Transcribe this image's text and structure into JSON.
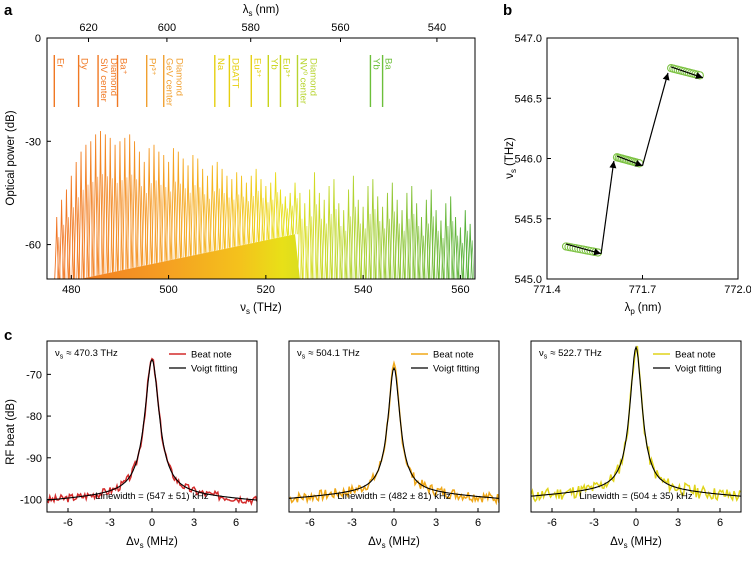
{
  "panel_labels": {
    "a": "a",
    "b": "b",
    "c": "c"
  },
  "chart_data": [
    {
      "id": "a",
      "type": "line",
      "xlabel": "ν",
      "xlabel_sub": "s",
      "xlabel_unit": "(THz)",
      "top_xlabel": "λ",
      "top_xlabel_sub": "s",
      "top_xlabel_unit": "(nm)",
      "ylabel": "Optical power (dB)",
      "xlim": [
        475,
        563
      ],
      "ylim": [
        -70,
        0
      ],
      "x_ticks": [
        480,
        500,
        520,
        540,
        560
      ],
      "y_ticks": [
        0,
        -30,
        -60
      ],
      "y_tick_labels": [
        "0",
        "-30",
        "-60"
      ],
      "top_ticks_nm": [
        620,
        600,
        580,
        560,
        540
      ],
      "comb_peaks_dB": [
        [
          477,
          -52
        ],
        [
          478,
          -47
        ],
        [
          479,
          -44
        ],
        [
          480,
          -40
        ],
        [
          481,
          -36
        ],
        [
          482,
          -33
        ],
        [
          483,
          -31
        ],
        [
          484,
          -30
        ],
        [
          485,
          -28
        ],
        [
          486,
          -27
        ],
        [
          487,
          -28
        ],
        [
          488,
          -29
        ],
        [
          489,
          -31
        ],
        [
          490,
          -30
        ],
        [
          491,
          -29
        ],
        [
          492,
          -28
        ],
        [
          493,
          -30
        ],
        [
          494,
          -33
        ],
        [
          495,
          -36
        ],
        [
          496,
          -32
        ],
        [
          497,
          -31
        ],
        [
          498,
          -33
        ],
        [
          499,
          -34
        ],
        [
          500,
          -36
        ],
        [
          501,
          -32
        ],
        [
          502,
          -33
        ],
        [
          503,
          -35
        ],
        [
          504,
          -37
        ],
        [
          505,
          -34
        ],
        [
          506,
          -35
        ],
        [
          507,
          -38
        ],
        [
          508,
          -40
        ],
        [
          509,
          -37
        ],
        [
          510,
          -36
        ],
        [
          511,
          -38
        ],
        [
          512,
          -40
        ],
        [
          513,
          -41
        ],
        [
          514,
          -39
        ],
        [
          515,
          -40
        ],
        [
          516,
          -42
        ],
        [
          517,
          -40
        ],
        [
          518,
          -38
        ],
        [
          519,
          -41
        ],
        [
          520,
          -43
        ],
        [
          521,
          -42
        ],
        [
          522,
          -39
        ],
        [
          523,
          -44
        ],
        [
          524,
          -46
        ],
        [
          525,
          -45
        ],
        [
          526,
          -42
        ],
        [
          527,
          -45
        ],
        [
          528,
          -48
        ],
        [
          529,
          -44
        ],
        [
          530,
          -39
        ],
        [
          531,
          -45
        ],
        [
          532,
          -47
        ],
        [
          533,
          -43
        ],
        [
          534,
          -41
        ],
        [
          535,
          -48
        ],
        [
          536,
          -50
        ],
        [
          537,
          -44
        ],
        [
          538,
          -40
        ],
        [
          539,
          -47
        ],
        [
          540,
          -49
        ],
        [
          541,
          -43
        ],
        [
          542,
          -41
        ],
        [
          543,
          -46
        ],
        [
          544,
          -49
        ],
        [
          545,
          -45
        ],
        [
          546,
          -42
        ],
        [
          547,
          -47
        ],
        [
          548,
          -50
        ],
        [
          549,
          -45
        ],
        [
          550,
          -43
        ],
        [
          551,
          -48
        ],
        [
          552,
          -52
        ],
        [
          553,
          -47
        ],
        [
          554,
          -44
        ],
        [
          555,
          -50
        ],
        [
          556,
          -53
        ],
        [
          557,
          -48
        ],
        [
          558,
          -46
        ],
        [
          559,
          -52
        ],
        [
          560,
          -55
        ],
        [
          561,
          -50
        ],
        [
          562,
          -54
        ]
      ],
      "floor_dB": [
        [
          475,
          -72
        ],
        [
          526,
          -57
        ],
        [
          527,
          -70
        ],
        [
          563,
          -70
        ]
      ],
      "annotations": [
        {
          "x_thz": 476.5,
          "lines": [
            "Er"
          ],
          "color": "#f07823"
        },
        {
          "x_thz": 481.5,
          "lines": [
            "Dy"
          ],
          "color": "#f07823"
        },
        {
          "x_thz": 485.5,
          "lines": [
            "SiV center",
            "Diamond"
          ],
          "color": "#f07823"
        },
        {
          "x_thz": 489.5,
          "lines": [
            "Ba⁺"
          ],
          "color": "#f07823"
        },
        {
          "x_thz": 495.5,
          "lines": [
            "Pr³⁺"
          ],
          "color": "#f0a030"
        },
        {
          "x_thz": 499,
          "lines": [
            "GeV center",
            "Diamond"
          ],
          "color": "#f0a030"
        },
        {
          "x_thz": 509.5,
          "lines": [
            "Na"
          ],
          "color": "#e6cf10"
        },
        {
          "x_thz": 512.5,
          "lines": [
            "DBATT"
          ],
          "color": "#e6cf10"
        },
        {
          "x_thz": 517,
          "lines": [
            "Eu³⁺"
          ],
          "color": "#e6cf10"
        },
        {
          "x_thz": 520.5,
          "lines": [
            "Yb"
          ],
          "color": "#c8d41a"
        },
        {
          "x_thz": 523,
          "lines": [
            "Eu³⁺"
          ],
          "color": "#c8d41a"
        },
        {
          "x_thz": 526.5,
          "lines": [
            "NV⁰ center",
            "Diamond"
          ],
          "color": "#b8d430"
        },
        {
          "x_thz": 541.5,
          "lines": [
            "Yb"
          ],
          "color": "#6cbf3a"
        },
        {
          "x_thz": 544,
          "lines": [
            "Ba"
          ],
          "color": "#6cbf3a"
        }
      ]
    },
    {
      "id": "b",
      "type": "scatter",
      "xlabel": "λ",
      "xlabel_sub": "p",
      "xlabel_unit": "(nm)",
      "ylabel": "ν",
      "ylabel_sub": "s",
      "ylabel_unit": "(THz)",
      "xlim": [
        771.4,
        772.0
      ],
      "ylim": [
        545.0,
        547.0
      ],
      "x_ticks": [
        771.4,
        771.7,
        772.0
      ],
      "x_tick_labels": [
        "771.4",
        "771.7",
        "772.0"
      ],
      "y_ticks": [
        545.0,
        545.5,
        546.0,
        546.5,
        547.0
      ],
      "y_tick_labels": [
        "545.0",
        "545.5",
        "546.0",
        "546.5",
        "547.0"
      ],
      "clusters": [
        {
          "x_start": 771.46,
          "x_end": 771.56,
          "y_start": 545.27,
          "y_end": 545.22
        },
        {
          "x_start": 771.62,
          "x_end": 771.69,
          "y_start": 546.01,
          "y_end": 545.96
        },
        {
          "x_start": 771.79,
          "x_end": 771.88,
          "y_start": 546.75,
          "y_end": 546.69
        }
      ],
      "arrows": [
        [
          [
            771.46,
            545.29
          ],
          [
            771.57,
            545.21
          ]
        ],
        [
          [
            771.57,
            545.21
          ],
          [
            771.61,
            545.98
          ]
        ],
        [
          [
            771.62,
            546.02
          ],
          [
            771.7,
            545.94
          ]
        ],
        [
          [
            771.7,
            545.94
          ],
          [
            771.78,
            546.71
          ]
        ],
        [
          [
            771.79,
            546.76
          ],
          [
            771.89,
            546.67
          ]
        ]
      ],
      "point_color": "#7cc242"
    },
    {
      "id": "c1",
      "type": "line",
      "xlabel": "Δν",
      "xlabel_sub": "s",
      "xlabel_unit": "(MHz)",
      "ylabel": "RF beat (dB)",
      "xlim": [
        -7.5,
        7.5
      ],
      "ylim": [
        -103,
        -62
      ],
      "x_ticks": [
        -6,
        -3,
        0,
        3,
        6
      ],
      "x_tick_labels": [
        "-6",
        "-3",
        "0",
        "3",
        "6"
      ],
      "y_ticks": [
        -70,
        -80,
        -90,
        -100
      ],
      "y_tick_labels": [
        "-70",
        "-80",
        "-90",
        "-100"
      ],
      "center_label_prefix": "ν",
      "center_label_sub": "s",
      "center_label_value": "≈ 470.3 THz",
      "linewidth_label": "Linewidth = (547 ± 51) kHz",
      "series": [
        {
          "name": "Beat note",
          "color": "#d42b2b",
          "peak": -66.5,
          "base": -98.5,
          "gamma": 0.6,
          "noise": 1.0,
          "seed": 3
        },
        {
          "name": "Voigt fitting",
          "color": "#000000",
          "peak": -66.5,
          "base": -98.5,
          "gamma": 0.6
        }
      ]
    },
    {
      "id": "c2",
      "type": "line",
      "xlabel": "Δν",
      "xlabel_sub": "s",
      "xlabel_unit": "(MHz)",
      "xlim": [
        -7.5,
        7.5
      ],
      "ylim": [
        -103,
        -62
      ],
      "x_ticks": [
        -6,
        -3,
        0,
        3,
        6
      ],
      "x_tick_labels": [
        "-6",
        "-3",
        "0",
        "3",
        "6"
      ],
      "center_label_prefix": "ν",
      "center_label_sub": "s",
      "center_label_value": "≈ 504.1 THz",
      "linewidth_label": "Linewidth = (482 ± 81) kHz",
      "series": [
        {
          "name": "Beat note",
          "color": "#f0a818",
          "peak": -68.5,
          "base": -98.0,
          "gamma": 0.5,
          "noise": 1.3,
          "seed": 7
        },
        {
          "name": "Voigt fitting",
          "color": "#000000",
          "peak": -68.5,
          "base": -98.0,
          "gamma": 0.5
        }
      ]
    },
    {
      "id": "c3",
      "type": "line",
      "xlabel": "Δν",
      "xlabel_sub": "s",
      "xlabel_unit": "(MHz)",
      "xlim": [
        -7.5,
        7.5
      ],
      "ylim": [
        -103,
        -62
      ],
      "x_ticks": [
        -6,
        -3,
        0,
        3,
        6
      ],
      "x_tick_labels": [
        "-6",
        "-3",
        "0",
        "3",
        "6"
      ],
      "center_label_prefix": "ν",
      "center_label_sub": "s",
      "center_label_value": "≈ 522.7 THz",
      "linewidth_label": "Linewidth = (504 ± 35) kHz",
      "series": [
        {
          "name": "Beat note",
          "color": "#e0d41a",
          "peak": -63.5,
          "base": -97.5,
          "gamma": 0.5,
          "noise": 1.6,
          "seed": 11
        },
        {
          "name": "Voigt fitting",
          "color": "#000000",
          "peak": -63.5,
          "base": -97.5,
          "gamma": 0.5
        }
      ]
    }
  ]
}
